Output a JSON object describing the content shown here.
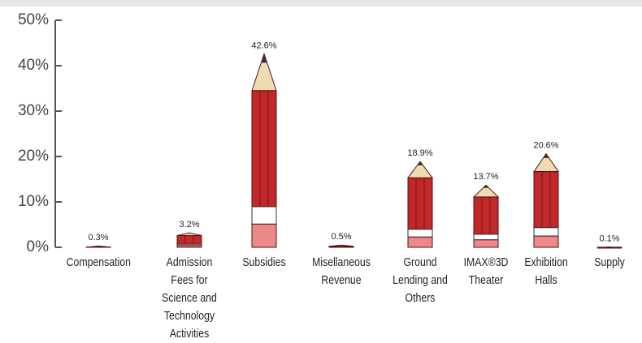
{
  "chart_data": {
    "type": "pencil-bar",
    "categories": [
      "Compensation",
      "Admission Fees for Science and Technology Activities",
      "Subsidies",
      "Misellaneous Revenue",
      "Ground Lending and Others",
      "IMAX®3D Theater",
      "Exhibition Halls",
      "Supply"
    ],
    "values": [
      0.3,
      3.2,
      42.6,
      0.5,
      18.9,
      13.7,
      20.6,
      0.1
    ],
    "value_labels": [
      "0.3%",
      "3.2%",
      "42.6%",
      "0.5%",
      "18.9%",
      "13.7%",
      "20.6%",
      "0.1%"
    ],
    "color": "#c0282a",
    "ylim": [
      0,
      50
    ],
    "yticks": [
      {
        "value": 0,
        "label": "0%"
      },
      {
        "value": 10,
        "label": "10%"
      },
      {
        "value": 20,
        "label": "20%"
      },
      {
        "value": 30,
        "label": "30%"
      },
      {
        "value": 40,
        "label": "40%"
      },
      {
        "value": 50,
        "label": "50%"
      }
    ]
  }
}
